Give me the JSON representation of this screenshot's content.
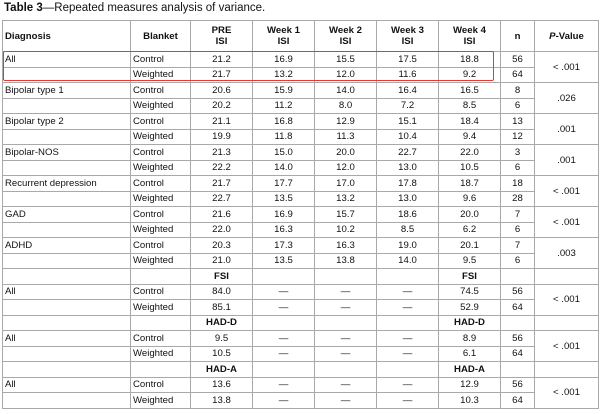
{
  "caption": {
    "label": "Table 3",
    "text": "—Repeated measures analysis of variance."
  },
  "headers": {
    "diagnosis": "Diagnosis",
    "blanket": "Blanket",
    "pre_1": "PRE",
    "pre_2": "ISI",
    "w1_1": "Week 1",
    "w1_2": "ISI",
    "w2_1": "Week 2",
    "w2_2": "ISI",
    "w3_1": "Week 3",
    "w3_2": "ISI",
    "w4_1": "Week 4",
    "w4_2": "ISI",
    "n": "n",
    "p_italic": "P",
    "p_rest": "-Value"
  },
  "groups": [
    {
      "diagnosis": "All",
      "p": "< .001",
      "rows": [
        {
          "blanket": "Control",
          "pre": "21.2",
          "w1": "16.9",
          "w2": "15.5",
          "w3": "17.5",
          "w4": "18.8",
          "n": "56"
        },
        {
          "blanket": "Weighted",
          "pre": "21.7",
          "w1": "13.2",
          "w2": "12.0",
          "w3": "11.6",
          "w4": "9.2",
          "n": "64"
        }
      ]
    },
    {
      "diagnosis": "Bipolar type 1",
      "p": ".026",
      "rows": [
        {
          "blanket": "Control",
          "pre": "20.6",
          "w1": "15.9",
          "w2": "14.0",
          "w3": "16.4",
          "w4": "16.5",
          "n": "8"
        },
        {
          "blanket": "Weighted",
          "pre": "20.2",
          "w1": "11.2",
          "w2": "8.0",
          "w3": "7.2",
          "w4": "8.5",
          "n": "6"
        }
      ]
    },
    {
      "diagnosis": "Bipolar type 2",
      "p": ".001",
      "rows": [
        {
          "blanket": "Control",
          "pre": "21.1",
          "w1": "16.8",
          "w2": "12.9",
          "w3": "15.1",
          "w4": "18.4",
          "n": "13"
        },
        {
          "blanket": "Weighted",
          "pre": "19.9",
          "w1": "11.8",
          "w2": "11.3",
          "w3": "10.4",
          "w4": "9.4",
          "n": "12"
        }
      ]
    },
    {
      "diagnosis": "Bipolar-NOS",
      "p": ".001",
      "rows": [
        {
          "blanket": "Control",
          "pre": "21.3",
          "w1": "15.0",
          "w2": "20.0",
          "w3": "22.7",
          "w4": "22.0",
          "n": "3"
        },
        {
          "blanket": "Weighted",
          "pre": "22.2",
          "w1": "14.0",
          "w2": "12.0",
          "w3": "13.0",
          "w4": "10.5",
          "n": "6"
        }
      ]
    },
    {
      "diagnosis": "Recurrent depression",
      "p": "< .001",
      "rows": [
        {
          "blanket": "Control",
          "pre": "21.7",
          "w1": "17.7",
          "w2": "17.0",
          "w3": "17.8",
          "w4": "18.7",
          "n": "18"
        },
        {
          "blanket": "Weighted",
          "pre": "22.7",
          "w1": "13.5",
          "w2": "13.2",
          "w3": "13.0",
          "w4": "9.6",
          "n": "28"
        }
      ]
    },
    {
      "diagnosis": "GAD",
      "p": "< .001",
      "rows": [
        {
          "blanket": "Control",
          "pre": "21.6",
          "w1": "16.9",
          "w2": "15.7",
          "w3": "18.6",
          "w4": "20.0",
          "n": "7"
        },
        {
          "blanket": "Weighted",
          "pre": "22.0",
          "w1": "16.3",
          "w2": "10.2",
          "w3": "8.5",
          "w4": "6.2",
          "n": "6"
        }
      ]
    },
    {
      "diagnosis": "ADHD",
      "p": ".003",
      "rows": [
        {
          "blanket": "Control",
          "pre": "20.3",
          "w1": "17.3",
          "w2": "16.3",
          "w3": "19.0",
          "w4": "20.1",
          "n": "7"
        },
        {
          "blanket": "Weighted",
          "pre": "21.0",
          "w1": "13.5",
          "w2": "13.8",
          "w3": "14.0",
          "w4": "9.5",
          "n": "6"
        }
      ]
    }
  ],
  "sections": [
    {
      "label_pre": "FSI",
      "label_w4": "FSI",
      "diagnosis": "All",
      "p": "< .001",
      "rows": [
        {
          "blanket": "Control",
          "pre": "84.0",
          "w1": "—",
          "w2": "—",
          "w3": "—",
          "w4": "74.5",
          "n": "56"
        },
        {
          "blanket": "Weighted",
          "pre": "85.1",
          "w1": "—",
          "w2": "—",
          "w3": "—",
          "w4": "52.9",
          "n": "64"
        }
      ]
    },
    {
      "label_pre": "HAD-D",
      "label_w4": "HAD-D",
      "diagnosis": "All",
      "p": "< .001",
      "rows": [
        {
          "blanket": "Control",
          "pre": "9.5",
          "w1": "—",
          "w2": "—",
          "w3": "—",
          "w4": "8.9",
          "n": "56"
        },
        {
          "blanket": "Weighted",
          "pre": "10.5",
          "w1": "—",
          "w2": "—",
          "w3": "—",
          "w4": "6.1",
          "n": "64"
        }
      ]
    },
    {
      "label_pre": "HAD-A",
      "label_w4": "HAD-A",
      "diagnosis": "All",
      "p": "< .001",
      "rows": [
        {
          "blanket": "Control",
          "pre": "13.6",
          "w1": "—",
          "w2": "—",
          "w3": "—",
          "w4": "12.9",
          "n": "56"
        },
        {
          "blanket": "Weighted",
          "pre": "13.8",
          "w1": "—",
          "w2": "—",
          "w3": "—",
          "w4": "10.3",
          "n": "64"
        }
      ]
    }
  ],
  "colors": {
    "highlight": "#e53935",
    "border": "#a9a9a9"
  }
}
